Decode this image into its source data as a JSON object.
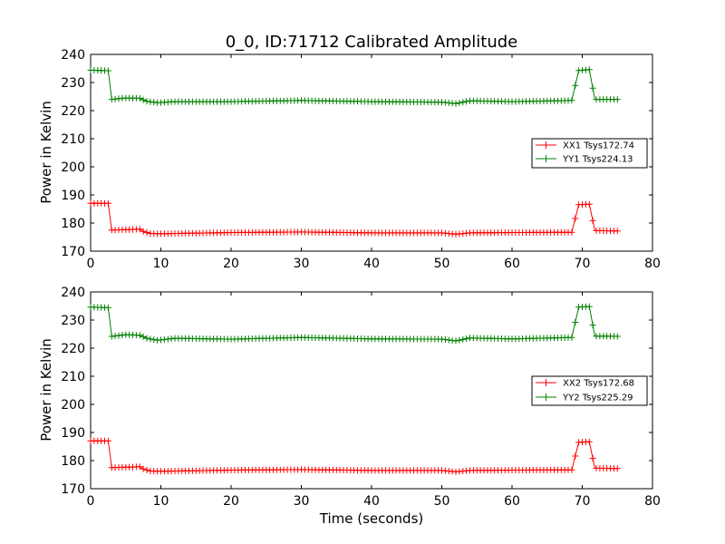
{
  "chart_data": [
    {
      "type": "line",
      "title": "0_0, ID:71712 Calibrated Amplitude",
      "ylabel": "Power in Kelvin",
      "xlabel": "",
      "xlim": [
        0,
        80
      ],
      "ylim": [
        170,
        240
      ],
      "xticks": [
        0,
        10,
        20,
        30,
        40,
        50,
        60,
        70,
        80
      ],
      "yticks": [
        170,
        180,
        190,
        200,
        210,
        220,
        230,
        240
      ],
      "legend_position": "center-right",
      "series": [
        {
          "name": "XX1 Tsys172.74",
          "color": "#ff0000",
          "marker": "plus",
          "points": [
            [
              0,
              187
            ],
            [
              2.5,
              187
            ],
            [
              3,
              177.5
            ],
            [
              7,
              177.8
            ],
            [
              7.5,
              177
            ],
            [
              8.5,
              176.3
            ],
            [
              10,
              176.2
            ],
            [
              20,
              176.6
            ],
            [
              30,
              176.8
            ],
            [
              40,
              176.5
            ],
            [
              50,
              176.5
            ],
            [
              52,
              176
            ],
            [
              54,
              176.5
            ],
            [
              60,
              176.6
            ],
            [
              68.5,
              176.7
            ],
            [
              69.5,
              186.5
            ],
            [
              71,
              186.7
            ],
            [
              71.8,
              177.3
            ],
            [
              75,
              177.2
            ]
          ]
        },
        {
          "name": "YY1 Tsys224.13",
          "color": "#008000",
          "marker": "plus",
          "points": [
            [
              0,
              234.4
            ],
            [
              2.5,
              234.2
            ],
            [
              3,
              224
            ],
            [
              5,
              224.5
            ],
            [
              7,
              224.4
            ],
            [
              8,
              223.3
            ],
            [
              9.5,
              222.8
            ],
            [
              12,
              223.2
            ],
            [
              20,
              223.2
            ],
            [
              30,
              223.6
            ],
            [
              40,
              223.2
            ],
            [
              50,
              223
            ],
            [
              52,
              222.5
            ],
            [
              54,
              223.5
            ],
            [
              60,
              223.2
            ],
            [
              68.5,
              223.6
            ],
            [
              69.5,
              234.3
            ],
            [
              71,
              234.6
            ],
            [
              71.8,
              224
            ],
            [
              75,
              224
            ]
          ]
        }
      ]
    },
    {
      "type": "line",
      "title": "",
      "ylabel": "Power in Kelvin",
      "xlabel": "Time (seconds)",
      "xlim": [
        0,
        80
      ],
      "ylim": [
        170,
        240
      ],
      "xticks": [
        0,
        10,
        20,
        30,
        40,
        50,
        60,
        70,
        80
      ],
      "yticks": [
        170,
        180,
        190,
        200,
        210,
        220,
        230,
        240
      ],
      "legend_position": "center-right",
      "series": [
        {
          "name": "XX2 Tsys172.68",
          "color": "#ff0000",
          "marker": "plus",
          "points": [
            [
              0,
              187
            ],
            [
              2.5,
              187
            ],
            [
              3,
              177.5
            ],
            [
              7,
              177.8
            ],
            [
              7.5,
              177
            ],
            [
              8.5,
              176.3
            ],
            [
              10,
              176.2
            ],
            [
              20,
              176.6
            ],
            [
              30,
              176.8
            ],
            [
              40,
              176.5
            ],
            [
              50,
              176.5
            ],
            [
              52,
              176
            ],
            [
              54,
              176.5
            ],
            [
              60,
              176.6
            ],
            [
              68.5,
              176.7
            ],
            [
              69.5,
              186.5
            ],
            [
              71,
              186.7
            ],
            [
              71.8,
              177.3
            ],
            [
              75,
              177.2
            ]
          ]
        },
        {
          "name": "YY2 Tsys225.29",
          "color": "#008000",
          "marker": "plus",
          "points": [
            [
              0,
              234.6
            ],
            [
              2.5,
              234.4
            ],
            [
              3,
              224.2
            ],
            [
              5,
              224.8
            ],
            [
              7,
              224.6
            ],
            [
              8,
              223.5
            ],
            [
              9.5,
              222.8
            ],
            [
              12,
              223.5
            ],
            [
              20,
              223.2
            ],
            [
              30,
              223.8
            ],
            [
              40,
              223.3
            ],
            [
              50,
              223.2
            ],
            [
              52,
              222.6
            ],
            [
              54,
              223.6
            ],
            [
              60,
              223.3
            ],
            [
              68.5,
              223.8
            ],
            [
              69.5,
              234.6
            ],
            [
              71,
              234.8
            ],
            [
              71.8,
              224.3
            ],
            [
              75,
              224.2
            ]
          ]
        }
      ]
    }
  ]
}
